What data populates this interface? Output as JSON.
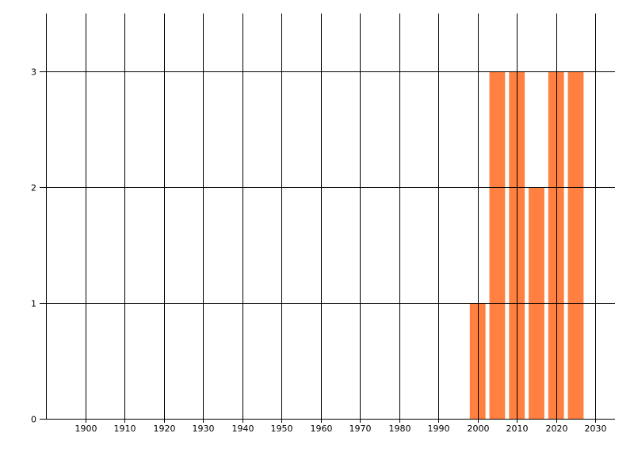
{
  "chart_data": {
    "type": "bar",
    "title": "",
    "xlabel": "",
    "ylabel": "",
    "x": [
      2000,
      2005,
      2010,
      2015,
      2020,
      2025
    ],
    "values": [
      1,
      3,
      3,
      2,
      3,
      3
    ],
    "bar_width_years": 4,
    "xlim": [
      1890,
      2035
    ],
    "ylim": [
      0,
      3.5
    ],
    "xticks": [
      "1900",
      "1910",
      "1920",
      "1930",
      "1940",
      "1950",
      "1960",
      "1970",
      "1980",
      "1990",
      "2000",
      "2010",
      "2020",
      "2030"
    ],
    "yticks": [
      "0",
      "1",
      "2",
      "3"
    ],
    "grid": true,
    "legend": "none",
    "colors": {
      "bar": "#FF8040",
      "grid": "#000000",
      "axis": "#000000"
    }
  }
}
